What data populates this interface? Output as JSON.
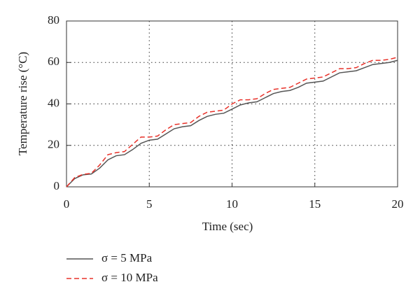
{
  "chart_data": {
    "type": "line",
    "xlabel": "Time (sec)",
    "ylabel": "Temperature rise (°C)",
    "x": [
      0,
      0.5,
      1,
      1.5,
      2,
      2.5,
      3,
      3.5,
      4,
      4.5,
      5,
      5.5,
      6,
      6.5,
      7,
      7.5,
      8,
      8.5,
      9,
      9.5,
      10,
      10.5,
      11,
      11.5,
      12,
      12.5,
      13,
      13.5,
      14,
      14.5,
      15,
      15.5,
      16,
      16.5,
      17,
      17.5,
      18,
      18.5,
      19,
      19.5,
      20
    ],
    "series": [
      {
        "name": "σ = 5 MPa",
        "color": "#555555",
        "dash": "solid",
        "values": [
          0,
          4,
          5.8,
          6.2,
          9,
          13,
          15,
          15.5,
          18,
          21,
          22.5,
          23,
          25.5,
          28,
          29,
          29.5,
          32,
          34,
          35,
          35.5,
          37.5,
          39.5,
          40.5,
          41,
          43,
          45,
          46,
          46.5,
          48,
          50,
          50.5,
          51,
          53,
          55,
          55.5,
          56,
          57.5,
          59,
          59.5,
          60,
          61
        ]
      },
      {
        "name": "σ = 10 MPa",
        "color": "#e8322a",
        "dash": "dashed",
        "values": [
          0,
          4.5,
          6,
          6.5,
          10.5,
          15.5,
          16.5,
          17,
          20.5,
          24,
          24,
          24.5,
          27.5,
          30,
          30.5,
          31,
          34,
          36,
          36.5,
          37,
          40,
          42,
          42,
          42.5,
          45,
          47,
          47.5,
          48,
          50,
          52,
          52.5,
          53,
          55,
          57,
          57,
          57.5,
          59.5,
          61,
          61,
          61.5,
          62.5
        ]
      }
    ],
    "xlim": [
      0,
      20
    ],
    "xticks": [
      0,
      5,
      10,
      15,
      20
    ],
    "ylim": [
      0,
      80
    ],
    "yticks": [
      0,
      20,
      40,
      60,
      80
    ],
    "grid": true,
    "legend": "bottom"
  }
}
